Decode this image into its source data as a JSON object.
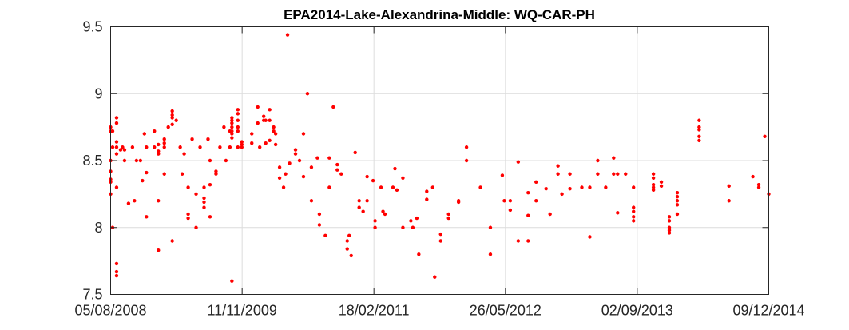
{
  "chart_data": {
    "type": "scatter",
    "title": "EPA2014-Lake-Alexandrina-Middle: WQ-CAR-PH",
    "xlabel": "",
    "ylabel": "",
    "x_scale": "date",
    "xlim": [
      "2008-08-05",
      "2014-12-09"
    ],
    "ylim": [
      7.5,
      9.5
    ],
    "x_ticks": [
      "2008-08-05",
      "2009-11-11",
      "2011-02-18",
      "2012-05-26",
      "2013-09-02",
      "2014-12-09"
    ],
    "x_tick_labels": [
      "05/08/2008",
      "11/11/2009",
      "18/02/2011",
      "26/05/2012",
      "02/09/2013",
      "09/12/2014"
    ],
    "y_ticks": [
      7.5,
      8,
      8.5,
      9,
      9.5
    ],
    "y_tick_labels": [
      "7.5",
      "8",
      "8.5",
      "9",
      "9.5"
    ],
    "grid": true,
    "legend": "none",
    "series": [
      {
        "color": "#ff0000",
        "marker": "dot",
        "points": [
          [
            "2008-08-05",
            8.75
          ],
          [
            "2008-08-05",
            8.72
          ],
          [
            "2008-08-05",
            8.5
          ],
          [
            "2008-08-05",
            8.42
          ],
          [
            "2008-08-05",
            8.36
          ],
          [
            "2008-08-05",
            8.34
          ],
          [
            "2008-08-05",
            8.25
          ],
          [
            "2008-08-12",
            8.72
          ],
          [
            "2008-08-12",
            8.6
          ],
          [
            "2008-08-12",
            8.0
          ],
          [
            "2008-08-26",
            8.82
          ],
          [
            "2008-08-26",
            8.78
          ],
          [
            "2008-08-26",
            8.64
          ],
          [
            "2008-08-26",
            8.6
          ],
          [
            "2008-08-26",
            8.55
          ],
          [
            "2008-08-26",
            8.3
          ],
          [
            "2008-08-26",
            7.73
          ],
          [
            "2008-08-26",
            7.67
          ],
          [
            "2008-08-26",
            7.64
          ],
          [
            "2008-09-09",
            8.58
          ],
          [
            "2008-09-16",
            8.6
          ],
          [
            "2008-09-23",
            8.58
          ],
          [
            "2008-09-23",
            8.5
          ],
          [
            "2008-10-07",
            8.18
          ],
          [
            "2008-10-21",
            8.6
          ],
          [
            "2008-10-28",
            8.2
          ],
          [
            "2008-11-04",
            8.5
          ],
          [
            "2008-11-18",
            8.5
          ],
          [
            "2008-11-25",
            8.35
          ],
          [
            "2008-12-02",
            8.7
          ],
          [
            "2008-12-09",
            8.6
          ],
          [
            "2008-12-09",
            8.41
          ],
          [
            "2008-12-09",
            8.08
          ],
          [
            "2009-01-06",
            8.72
          ],
          [
            "2009-01-06",
            8.6
          ],
          [
            "2009-01-20",
            8.62
          ],
          [
            "2009-01-20",
            8.57
          ],
          [
            "2009-01-20",
            8.55
          ],
          [
            "2009-01-20",
            8.2
          ],
          [
            "2009-01-20",
            7.83
          ],
          [
            "2009-02-10",
            8.66
          ],
          [
            "2009-02-10",
            8.63
          ],
          [
            "2009-02-10",
            8.6
          ],
          [
            "2009-02-10",
            8.4
          ],
          [
            "2009-02-24",
            8.75
          ],
          [
            "2009-03-10",
            8.87
          ],
          [
            "2009-03-10",
            8.84
          ],
          [
            "2009-03-10",
            8.82
          ],
          [
            "2009-03-10",
            8.77
          ],
          [
            "2009-03-10",
            7.9
          ],
          [
            "2009-03-24",
            8.8
          ],
          [
            "2009-04-07",
            8.6
          ],
          [
            "2009-04-14",
            8.4
          ],
          [
            "2009-04-21",
            8.55
          ],
          [
            "2009-05-05",
            8.3
          ],
          [
            "2009-05-05",
            8.1
          ],
          [
            "2009-05-05",
            8.07
          ],
          [
            "2009-05-19",
            8.66
          ],
          [
            "2009-06-02",
            8.25
          ],
          [
            "2009-06-02",
            8.0
          ],
          [
            "2009-06-16",
            8.6
          ],
          [
            "2009-06-30",
            8.3
          ],
          [
            "2009-06-30",
            8.22
          ],
          [
            "2009-06-30",
            8.19
          ],
          [
            "2009-06-30",
            8.15
          ],
          [
            "2009-07-14",
            8.66
          ],
          [
            "2009-07-21",
            8.5
          ],
          [
            "2009-07-21",
            8.32
          ],
          [
            "2009-07-21",
            8.08
          ],
          [
            "2009-08-11",
            8.42
          ],
          [
            "2009-08-11",
            8.4
          ],
          [
            "2009-08-25",
            8.6
          ],
          [
            "2009-09-08",
            8.75
          ],
          [
            "2009-09-15",
            8.5
          ],
          [
            "2009-09-29",
            8.72
          ],
          [
            "2009-09-29",
            8.6
          ],
          [
            "2009-10-06",
            8.82
          ],
          [
            "2009-10-06",
            8.8
          ],
          [
            "2009-10-06",
            8.78
          ],
          [
            "2009-10-06",
            8.75
          ],
          [
            "2009-10-06",
            8.72
          ],
          [
            "2009-10-06",
            8.7
          ],
          [
            "2009-10-06",
            8.67
          ],
          [
            "2009-10-06",
            7.6
          ],
          [
            "2009-10-27",
            8.88
          ],
          [
            "2009-10-27",
            8.85
          ],
          [
            "2009-10-27",
            8.8
          ],
          [
            "2009-10-27",
            8.75
          ],
          [
            "2009-10-27",
            8.72
          ],
          [
            "2009-10-27",
            8.6
          ],
          [
            "2009-11-10",
            8.64
          ],
          [
            "2009-11-10",
            8.62
          ],
          [
            "2009-11-10",
            8.6
          ],
          [
            "2009-12-15",
            8.7
          ],
          [
            "2009-12-15",
            8.63
          ],
          [
            "2010-01-05",
            8.9
          ],
          [
            "2010-01-05",
            8.78
          ],
          [
            "2010-01-12",
            8.6
          ],
          [
            "2010-01-26",
            8.83
          ],
          [
            "2010-01-26",
            8.8
          ],
          [
            "2010-02-02",
            8.8
          ],
          [
            "2010-02-02",
            8.63
          ],
          [
            "2010-02-16",
            8.88
          ],
          [
            "2010-02-16",
            8.8
          ],
          [
            "2010-02-16",
            8.65
          ],
          [
            "2010-03-02",
            8.75
          ],
          [
            "2010-03-02",
            8.72
          ],
          [
            "2010-03-09",
            8.7
          ],
          [
            "2010-03-09",
            8.62
          ],
          [
            "2010-03-23",
            8.45
          ],
          [
            "2010-03-23",
            8.37
          ],
          [
            "2010-04-06",
            8.3
          ],
          [
            "2010-04-13",
            8.4
          ],
          [
            "2010-04-27",
            8.48
          ],
          [
            "2010-04-20",
            9.44
          ],
          [
            "2010-05-18",
            8.55
          ],
          [
            "2010-05-18",
            8.58
          ],
          [
            "2010-06-01",
            8.5
          ],
          [
            "2010-06-15",
            8.7
          ],
          [
            "2010-06-15",
            8.38
          ],
          [
            "2010-06-29",
            9.0
          ],
          [
            "2010-07-13",
            8.45
          ],
          [
            "2010-07-13",
            8.2
          ],
          [
            "2010-08-03",
            8.52
          ],
          [
            "2010-08-10",
            8.1
          ],
          [
            "2010-08-10",
            8.02
          ],
          [
            "2010-08-31",
            7.94
          ],
          [
            "2010-09-14",
            8.52
          ],
          [
            "2010-09-14",
            8.3
          ],
          [
            "2010-09-28",
            8.9
          ],
          [
            "2010-10-12",
            8.47
          ],
          [
            "2010-10-12",
            8.43
          ],
          [
            "2010-10-26",
            8.4
          ],
          [
            "2010-11-16",
            7.9
          ],
          [
            "2010-11-16",
            7.84
          ],
          [
            "2010-11-23",
            7.94
          ],
          [
            "2010-11-30",
            7.79
          ],
          [
            "2010-12-14",
            8.56
          ],
          [
            "2010-12-28",
            8.2
          ],
          [
            "2010-12-28",
            8.15
          ],
          [
            "2011-01-11",
            8.12
          ],
          [
            "2011-01-25",
            8.38
          ],
          [
            "2011-01-25",
            8.2
          ],
          [
            "2011-02-15",
            8.35
          ],
          [
            "2011-02-22",
            8.05
          ],
          [
            "2011-02-22",
            8.0
          ],
          [
            "2011-03-15",
            8.3
          ],
          [
            "2011-03-22",
            8.12
          ],
          [
            "2011-03-29",
            8.1
          ],
          [
            "2011-04-26",
            8.3
          ],
          [
            "2011-05-03",
            8.44
          ],
          [
            "2011-05-10",
            8.28
          ],
          [
            "2011-05-31",
            8.37
          ],
          [
            "2011-05-31",
            8.0
          ],
          [
            "2011-06-28",
            8.05
          ],
          [
            "2011-07-05",
            8.0
          ],
          [
            "2011-07-26",
            7.8
          ],
          [
            "2011-07-19",
            8.07
          ],
          [
            "2011-08-23",
            8.27
          ],
          [
            "2011-08-23",
            8.21
          ],
          [
            "2011-09-13",
            8.3
          ],
          [
            "2011-09-20",
            7.63
          ],
          [
            "2011-10-11",
            7.95
          ],
          [
            "2011-10-11",
            7.9
          ],
          [
            "2011-11-08",
            8.1
          ],
          [
            "2011-11-08",
            8.07
          ],
          [
            "2011-12-13",
            8.2
          ],
          [
            "2011-12-13",
            8.19
          ],
          [
            "2012-01-10",
            8.6
          ],
          [
            "2012-01-10",
            8.5
          ],
          [
            "2012-02-28",
            8.3
          ],
          [
            "2012-04-03",
            8.0
          ],
          [
            "2012-04-03",
            7.8
          ],
          [
            "2012-05-15",
            8.39
          ],
          [
            "2012-05-22",
            8.2
          ],
          [
            "2012-06-12",
            8.2
          ],
          [
            "2012-06-12",
            8.13
          ],
          [
            "2012-07-10",
            8.49
          ],
          [
            "2012-07-10",
            7.9
          ],
          [
            "2012-08-14",
            8.26
          ],
          [
            "2012-08-14",
            8.09
          ],
          [
            "2012-08-14",
            7.9
          ],
          [
            "2012-09-11",
            8.34
          ],
          [
            "2012-09-11",
            8.2
          ],
          [
            "2012-10-16",
            8.29
          ],
          [
            "2012-10-30",
            8.1
          ],
          [
            "2012-11-27",
            8.46
          ],
          [
            "2012-11-27",
            8.4
          ],
          [
            "2012-12-11",
            8.25
          ],
          [
            "2013-01-08",
            8.4
          ],
          [
            "2013-01-08",
            8.29
          ],
          [
            "2013-02-19",
            8.3
          ],
          [
            "2013-03-19",
            8.3
          ],
          [
            "2013-03-19",
            7.93
          ],
          [
            "2013-04-16",
            8.5
          ],
          [
            "2013-04-16",
            8.4
          ],
          [
            "2013-05-14",
            8.3
          ],
          [
            "2013-06-11",
            8.52
          ],
          [
            "2013-06-11",
            8.4
          ],
          [
            "2013-06-25",
            8.4
          ],
          [
            "2013-06-25",
            8.11
          ],
          [
            "2013-07-23",
            8.4
          ],
          [
            "2013-08-20",
            8.3
          ],
          [
            "2013-08-20",
            8.15
          ],
          [
            "2013-08-20",
            8.12
          ],
          [
            "2013-08-20",
            8.08
          ],
          [
            "2013-08-20",
            8.05
          ],
          [
            "2013-10-29",
            8.4
          ],
          [
            "2013-10-29",
            8.37
          ],
          [
            "2013-10-29",
            8.32
          ],
          [
            "2013-10-29",
            8.3
          ],
          [
            "2013-10-29",
            8.28
          ],
          [
            "2013-11-26",
            8.34
          ],
          [
            "2013-11-26",
            8.31
          ],
          [
            "2013-12-24",
            8.08
          ],
          [
            "2013-12-24",
            8.05
          ],
          [
            "2013-12-24",
            8.0
          ],
          [
            "2013-12-24",
            7.98
          ],
          [
            "2013-12-24",
            7.96
          ],
          [
            "2014-01-21",
            8.26
          ],
          [
            "2014-01-21",
            8.23
          ],
          [
            "2014-01-21",
            8.2
          ],
          [
            "2014-01-21",
            8.17
          ],
          [
            "2014-01-21",
            8.1
          ],
          [
            "2014-04-08",
            8.8
          ],
          [
            "2014-04-08",
            8.75
          ],
          [
            "2014-04-08",
            8.73
          ],
          [
            "2014-04-08",
            8.68
          ],
          [
            "2014-04-08",
            8.65
          ],
          [
            "2014-07-22",
            8.31
          ],
          [
            "2014-07-22",
            8.2
          ],
          [
            "2014-10-14",
            8.38
          ],
          [
            "2014-11-04",
            8.32
          ],
          [
            "2014-11-04",
            8.3
          ],
          [
            "2014-11-25",
            8.68
          ],
          [
            "2014-12-09",
            8.25
          ]
        ]
      }
    ]
  }
}
